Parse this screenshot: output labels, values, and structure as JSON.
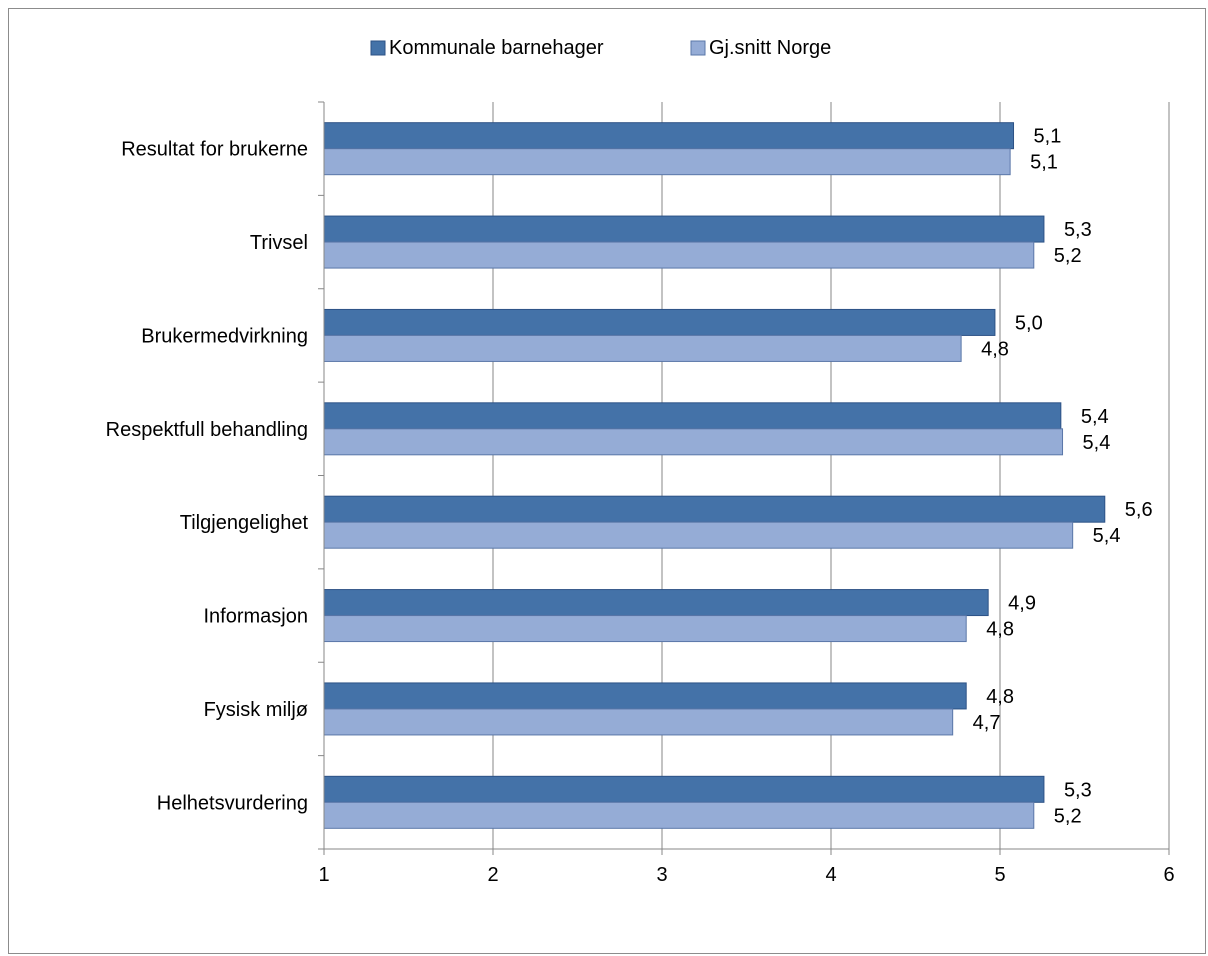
{
  "chart_data": {
    "type": "bar",
    "orientation": "horizontal",
    "categories": [
      "Resultat for brukerne",
      "Trivsel",
      "Brukermedvirkning",
      "Respektfull behandling",
      "Tilgjengelighet",
      "Informasjon",
      "Fysisk miljø",
      "Helhetsvurdering"
    ],
    "series": [
      {
        "name": "Kommunale barnehager",
        "color": "#4472a8",
        "values": [
          5.08,
          5.26,
          4.97,
          5.36,
          5.62,
          4.93,
          4.8,
          5.26
        ],
        "labels": [
          "5,1",
          "5,3",
          "5,0",
          "5,4",
          "5,6",
          "4,9",
          "4,8",
          "5,3"
        ]
      },
      {
        "name": "Gj.snitt Norge",
        "color": "#95acd6",
        "values": [
          5.06,
          5.2,
          4.77,
          5.37,
          5.43,
          4.8,
          4.72,
          5.2
        ],
        "labels": [
          "5,1",
          "5,2",
          "4,8",
          "5,4",
          "5,4",
          "4,8",
          "4,7",
          "5,2"
        ]
      }
    ],
    "xlim": [
      1,
      6
    ],
    "xticks": [
      "1",
      "2",
      "3",
      "4",
      "5",
      "6"
    ],
    "grid": "vertical",
    "legend": "top-center",
    "title": "",
    "xlabel": "",
    "ylabel": ""
  }
}
